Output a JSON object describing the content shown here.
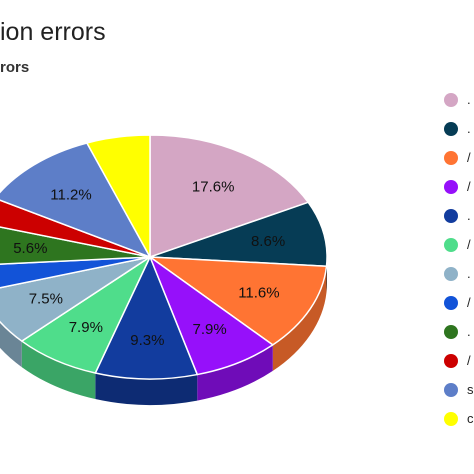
{
  "chart_data": {
    "type": "pie",
    "title": "ion errors",
    "subtitle": "rors",
    "pie_style": "3d",
    "start_angle_deg": 0,
    "legend_position": "right",
    "slices": [
      {
        "value": 17.6,
        "label": "17.6%",
        "legend": ". ",
        "color": "#d4a6c4",
        "side_color": "#a07c95"
      },
      {
        "value": 8.6,
        "label": "8.6%",
        "legend": ". ",
        "color": "#063c55",
        "side_color": "#042a3b"
      },
      {
        "value": 11.6,
        "label": "11.6%",
        "legend": "/",
        "color": "#ff7433",
        "side_color": "#c75a26"
      },
      {
        "value": 7.9,
        "label": "7.9%",
        "legend": "/",
        "color": "#9610fa",
        "side_color": "#6f0cb8"
      },
      {
        "value": 9.3,
        "label": "9.3%",
        "legend": ". ",
        "color": "#123c9e",
        "side_color": "#0d2b73"
      },
      {
        "value": 7.9,
        "label": "7.9%",
        "legend": "/",
        "color": "#4fdd8b",
        "side_color": "#3aa566"
      },
      {
        "value": 7.5,
        "label": "7.5%",
        "legend": ". ",
        "color": "#8fb2c8",
        "side_color": "#6a8596"
      },
      {
        "value": 3.5,
        "label": "",
        "legend": "/",
        "color": "#1253d8",
        "side_color": "#0d3da0"
      },
      {
        "value": 5.6,
        "label": "5.6%",
        "legend": ". ",
        "color": "#2e751f",
        "side_color": "#215616"
      },
      {
        "value": 3.5,
        "label": "",
        "legend": "/",
        "color": "#cc0000",
        "side_color": "#960000"
      },
      {
        "value": 11.2,
        "label": "11.2%",
        "legend": "s",
        "color": "#5d7ec8",
        "side_color": "#455e96"
      },
      {
        "value": 5.8,
        "label": "",
        "legend": "c",
        "color": "#ffff00",
        "side_color": "#c4c400"
      }
    ]
  }
}
